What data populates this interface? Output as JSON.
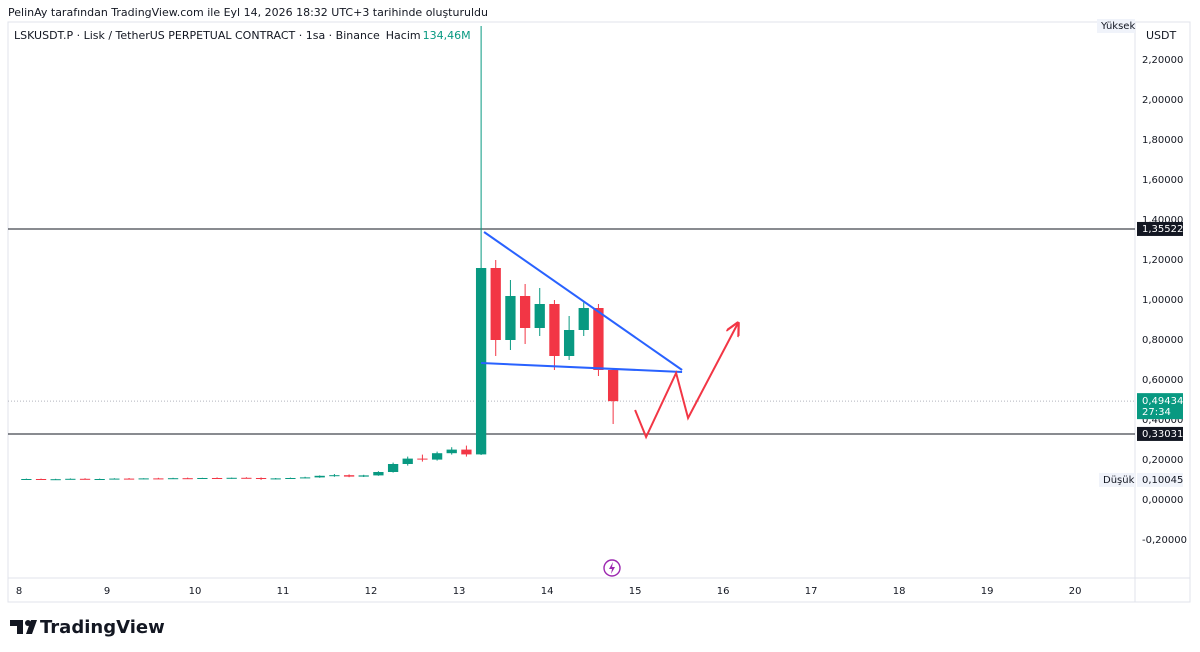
{
  "header": {
    "caption": "PelinAy tarafından TradingView.com ile Eyl 14, 2026 18:32 UTC+3 tarihinde oluşturuldu"
  },
  "chart_data": {
    "type": "candlestick",
    "symbol": "LSKUSDT.P · Lisk / TetherUS PERPETUAL CONTRACT · 1sa · Binance",
    "volume_name": "Hacim",
    "volume": {
      "value": 134460000,
      "label": "134,46M"
    },
    "currency": "USDT",
    "up_color": "#089981",
    "down_color": "#f23645",
    "x": [
      8,
      8.167,
      8.333,
      8.5,
      8.667,
      8.833,
      9,
      9.167,
      9.333,
      9.5,
      9.667,
      9.833,
      10,
      10.167,
      10.333,
      10.5,
      10.667,
      10.833,
      11,
      11.167,
      11.333,
      11.5,
      11.667,
      11.833,
      12,
      12.167,
      12.333,
      12.5,
      12.667,
      12.833,
      13,
      13.167,
      13.333,
      13.5,
      13.667,
      13.833,
      14,
      14.167,
      14.333,
      14.5,
      14.667
    ],
    "open": [
      0.104,
      0.105,
      0.103,
      0.104,
      0.106,
      0.104,
      0.105,
      0.107,
      0.106,
      0.108,
      0.107,
      0.109,
      0.108,
      0.11,
      0.109,
      0.111,
      0.11,
      0.105,
      0.108,
      0.11,
      0.113,
      0.121,
      0.124,
      0.117,
      0.123,
      0.14,
      0.18,
      0.207,
      0.202,
      0.234,
      0.252,
      0.228,
      1.16,
      0.8,
      1.02,
      0.86,
      0.98,
      0.72,
      0.85,
      0.96,
      0.65
    ],
    "high": [
      0.107,
      0.107,
      0.106,
      0.108,
      0.109,
      0.107,
      0.109,
      0.11,
      0.109,
      0.111,
      0.111,
      0.112,
      0.111,
      0.113,
      0.112,
      0.114,
      0.113,
      0.11,
      0.112,
      0.116,
      0.123,
      0.13,
      0.128,
      0.126,
      0.144,
      0.187,
      0.217,
      0.227,
      0.242,
      0.264,
      0.272,
      2.37,
      1.2,
      1.1,
      1.08,
      1.06,
      1.0,
      0.92,
      0.99,
      0.98,
      0.66
    ],
    "low": [
      0.102,
      0.102,
      0.1015,
      0.102,
      0.103,
      0.102,
      0.103,
      0.104,
      0.104,
      0.105,
      0.105,
      0.106,
      0.105,
      0.107,
      0.106,
      0.108,
      0.10045,
      0.103,
      0.106,
      0.108,
      0.111,
      0.116,
      0.114,
      0.115,
      0.121,
      0.137,
      0.172,
      0.192,
      0.197,
      0.227,
      0.217,
      0.225,
      0.72,
      0.75,
      0.78,
      0.82,
      0.65,
      0.7,
      0.82,
      0.62,
      0.38
    ],
    "close": [
      0.105,
      0.103,
      0.104,
      0.106,
      0.104,
      0.105,
      0.107,
      0.106,
      0.108,
      0.107,
      0.109,
      0.108,
      0.11,
      0.109,
      0.111,
      0.11,
      0.105,
      0.108,
      0.11,
      0.113,
      0.121,
      0.124,
      0.117,
      0.123,
      0.14,
      0.18,
      0.207,
      0.202,
      0.234,
      0.252,
      0.228,
      1.16,
      0.8,
      1.02,
      0.86,
      0.98,
      0.72,
      0.85,
      0.96,
      0.65,
      0.49434
    ],
    "xlim": [
      7.875,
      20.68
    ],
    "xticks": [
      8,
      9,
      10,
      11,
      12,
      13,
      14,
      15,
      16,
      17,
      18,
      19,
      20
    ],
    "ylim": [
      -0.39,
      2.39
    ],
    "yticks": [
      {
        "value": -0.2,
        "label": "-0,20000"
      },
      {
        "value": 0,
        "label": "0,00000"
      },
      {
        "value": 0.2,
        "label": "0,20000"
      },
      {
        "value": 0.4,
        "label": "0,40000"
      },
      {
        "value": 0.6,
        "label": "0,60000"
      },
      {
        "value": 0.8,
        "label": "0,80000"
      },
      {
        "value": 1.0,
        "label": "1,00000"
      },
      {
        "value": 1.2,
        "label": "1,20000"
      },
      {
        "value": 1.4,
        "label": "1,40000"
      },
      {
        "value": 1.6,
        "label": "1,60000"
      },
      {
        "value": 1.8,
        "label": "1,80000"
      },
      {
        "value": 2.0,
        "label": "2,00000"
      },
      {
        "value": 2.2,
        "label": "2,20000"
      }
    ],
    "levels": [
      {
        "value": 1.35522,
        "label": "1,35522"
      },
      {
        "value": 0.33031,
        "label": "0,33031"
      }
    ],
    "last_price": {
      "value": 0.49434,
      "label": "0,49434",
      "countdown": "27:34"
    },
    "high_marker": {
      "label": "Yüksek"
    },
    "low_marker": {
      "label": "Düşük",
      "value": 0.10045,
      "value_label": "0,10045"
    },
    "trendlines": [
      {
        "color": "#2962ff",
        "x": [
          13.284,
          15.534
        ],
        "y": [
          1.34,
          0.65
        ]
      },
      {
        "color": "#2962ff",
        "x": [
          13.25,
          15.534
        ],
        "y": [
          0.685,
          0.64
        ]
      },
      {
        "color": "#f23645",
        "x": [
          15.0,
          15.125,
          15.466,
          15.602,
          16.17
        ],
        "y": [
          0.45,
          0.315,
          0.635,
          0.41,
          0.885
        ]
      }
    ]
  },
  "footer": {
    "brand": "TradingView"
  }
}
